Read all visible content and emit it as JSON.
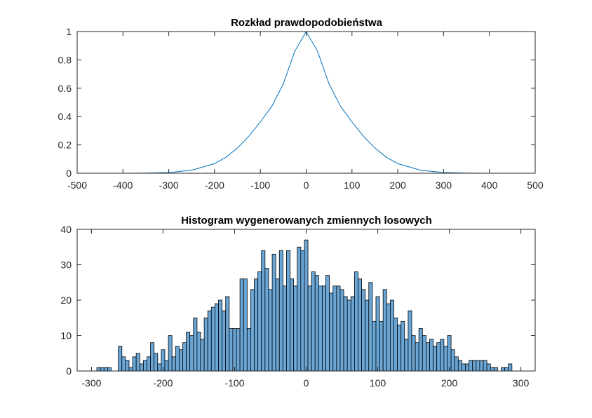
{
  "chart_data": [
    {
      "type": "line",
      "title": "Rozkład prawdopodobieństwa",
      "xlim": [
        -500,
        500
      ],
      "ylim": [
        0,
        1
      ],
      "xticks": [
        -500,
        -400,
        -300,
        -200,
        -100,
        0,
        100,
        200,
        300,
        400,
        500
      ],
      "yticks": [
        0,
        0.2,
        0.4,
        0.6,
        0.8,
        1
      ],
      "series": [
        {
          "color": "#0072bd",
          "x": [
            -500,
            -450,
            -400,
            -350,
            -300,
            -250,
            -200,
            -175,
            -150,
            -125,
            -100,
            -75,
            -50,
            -25,
            0,
            25,
            50,
            75,
            100,
            125,
            150,
            175,
            200,
            250,
            300,
            350,
            400,
            450,
            500
          ],
          "y": [
            0.0,
            0.0,
            0.0,
            0.001,
            0.005,
            0.021,
            0.068,
            0.113,
            0.178,
            0.262,
            0.362,
            0.473,
            0.63,
            0.86,
            1.0,
            0.86,
            0.63,
            0.473,
            0.362,
            0.262,
            0.178,
            0.113,
            0.068,
            0.021,
            0.005,
            0.001,
            0.0,
            0.0,
            0.0
          ]
        }
      ],
      "grid": false
    },
    {
      "type": "bar",
      "title": "Histogram wygenerowanych zmiennych losowych",
      "xlim": [
        -320,
        320
      ],
      "ylim": [
        0,
        40
      ],
      "xticks": [
        -300,
        -200,
        -100,
        0,
        100,
        200,
        300
      ],
      "yticks": [
        0,
        10,
        20,
        30,
        40
      ],
      "bin_width": 5,
      "bar_color": "#6aa6d6",
      "bins": [
        [
          -290,
          1
        ],
        [
          -285,
          1
        ],
        [
          -280,
          1
        ],
        [
          -275,
          1
        ],
        [
          -270,
          0
        ],
        [
          -265,
          0
        ],
        [
          -260,
          7
        ],
        [
          -255,
          4
        ],
        [
          -250,
          3
        ],
        [
          -245,
          1
        ],
        [
          -240,
          4
        ],
        [
          -235,
          5
        ],
        [
          -230,
          2
        ],
        [
          -225,
          3
        ],
        [
          -220,
          4
        ],
        [
          -215,
          8
        ],
        [
          -210,
          5
        ],
        [
          -205,
          2
        ],
        [
          -200,
          6
        ],
        [
          -195,
          3
        ],
        [
          -190,
          10
        ],
        [
          -185,
          4
        ],
        [
          -180,
          7
        ],
        [
          -175,
          6
        ],
        [
          -170,
          8
        ],
        [
          -165,
          11
        ],
        [
          -160,
          10
        ],
        [
          -155,
          15
        ],
        [
          -150,
          11
        ],
        [
          -145,
          9
        ],
        [
          -140,
          15
        ],
        [
          -135,
          17
        ],
        [
          -130,
          18
        ],
        [
          -125,
          19
        ],
        [
          -120,
          20
        ],
        [
          -115,
          17
        ],
        [
          -110,
          21
        ],
        [
          -105,
          12
        ],
        [
          -100,
          12
        ],
        [
          -95,
          12
        ],
        [
          -90,
          26
        ],
        [
          -85,
          26
        ],
        [
          -80,
          12
        ],
        [
          -75,
          23
        ],
        [
          -70,
          26
        ],
        [
          -65,
          28
        ],
        [
          -60,
          34
        ],
        [
          -55,
          29
        ],
        [
          -50,
          23
        ],
        [
          -45,
          33
        ],
        [
          -40,
          26
        ],
        [
          -35,
          34
        ],
        [
          -30,
          24
        ],
        [
          -25,
          34
        ],
        [
          -20,
          26
        ],
        [
          -15,
          24
        ],
        [
          -10,
          35
        ],
        [
          -5,
          34
        ],
        [
          0,
          37
        ],
        [
          5,
          24
        ],
        [
          10,
          28
        ],
        [
          15,
          27
        ],
        [
          20,
          24
        ],
        [
          25,
          24
        ],
        [
          30,
          27
        ],
        [
          35,
          22
        ],
        [
          40,
          24
        ],
        [
          45,
          24
        ],
        [
          50,
          23
        ],
        [
          55,
          21
        ],
        [
          60,
          20
        ],
        [
          65,
          21
        ],
        [
          70,
          28
        ],
        [
          75,
          26
        ],
        [
          80,
          23
        ],
        [
          85,
          20
        ],
        [
          90,
          25
        ],
        [
          95,
          14
        ],
        [
          100,
          21
        ],
        [
          105,
          14
        ],
        [
          110,
          23
        ],
        [
          115,
          19
        ],
        [
          120,
          20
        ],
        [
          125,
          15
        ],
        [
          130,
          13
        ],
        [
          135,
          14
        ],
        [
          140,
          9
        ],
        [
          145,
          17
        ],
        [
          150,
          10
        ],
        [
          155,
          8
        ],
        [
          160,
          12
        ],
        [
          165,
          10
        ],
        [
          170,
          8
        ],
        [
          175,
          9
        ],
        [
          180,
          7
        ],
        [
          185,
          8
        ],
        [
          190,
          9
        ],
        [
          195,
          7
        ],
        [
          200,
          10
        ],
        [
          205,
          6
        ],
        [
          210,
          4
        ],
        [
          215,
          3
        ],
        [
          220,
          2
        ],
        [
          225,
          2
        ],
        [
          230,
          3
        ],
        [
          235,
          3
        ],
        [
          240,
          3
        ],
        [
          245,
          3
        ],
        [
          250,
          3
        ],
        [
          255,
          2
        ],
        [
          260,
          1
        ],
        [
          265,
          1
        ],
        [
          270,
          0
        ],
        [
          275,
          1
        ],
        [
          280,
          1
        ],
        [
          285,
          2
        ],
        [
          290,
          0
        ]
      ],
      "grid": false
    }
  ]
}
